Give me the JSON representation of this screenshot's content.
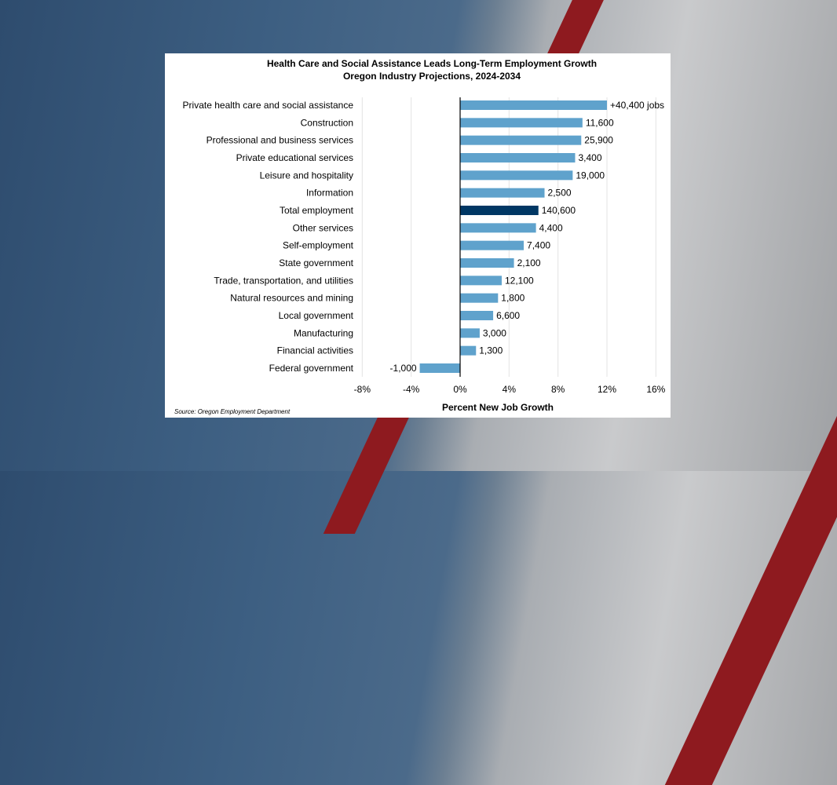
{
  "chart_data": {
    "type": "bar",
    "orientation": "horizontal",
    "title": "Health Care and Social Assistance Leads Long-Term Employment Growth",
    "subtitle": "Oregon Industry Projections, 2024-2034",
    "xlabel": "Percent New Job Growth",
    "source": "Source: Oregon Employment Department",
    "xlim": [
      -8,
      16
    ],
    "xticks": [
      "-8%",
      "-4%",
      "0%",
      "4%",
      "8%",
      "12%",
      "16%"
    ],
    "grid": true,
    "categories": [
      "Private health care and social assistance",
      "Construction",
      "Professional and business services",
      "Private educational services",
      "Leisure and hospitality",
      "Information",
      "Total employment",
      "Other services",
      "Self-employment",
      "State government",
      "Trade, transportation, and utilities",
      "Natural resources and mining",
      "Local government",
      "Manufacturing",
      "Financial activities",
      "Federal government"
    ],
    "values": [
      12.0,
      10.0,
      9.9,
      9.4,
      9.2,
      6.9,
      6.4,
      6.2,
      5.2,
      4.4,
      3.4,
      3.1,
      2.7,
      1.6,
      1.3,
      -3.3
    ],
    "data_labels": [
      "+40,400 jobs",
      "11,600",
      "25,900",
      "3,400",
      "19,000",
      "2,500",
      "140,600",
      "4,400",
      "7,400",
      "2,100",
      "12,100",
      "1,800",
      "6,600",
      "3,000",
      "1,300",
      "-1,000"
    ],
    "colors": {
      "bar": "#5fa2cc",
      "highlight": "#003764",
      "highlight_category": "Total employment"
    }
  }
}
